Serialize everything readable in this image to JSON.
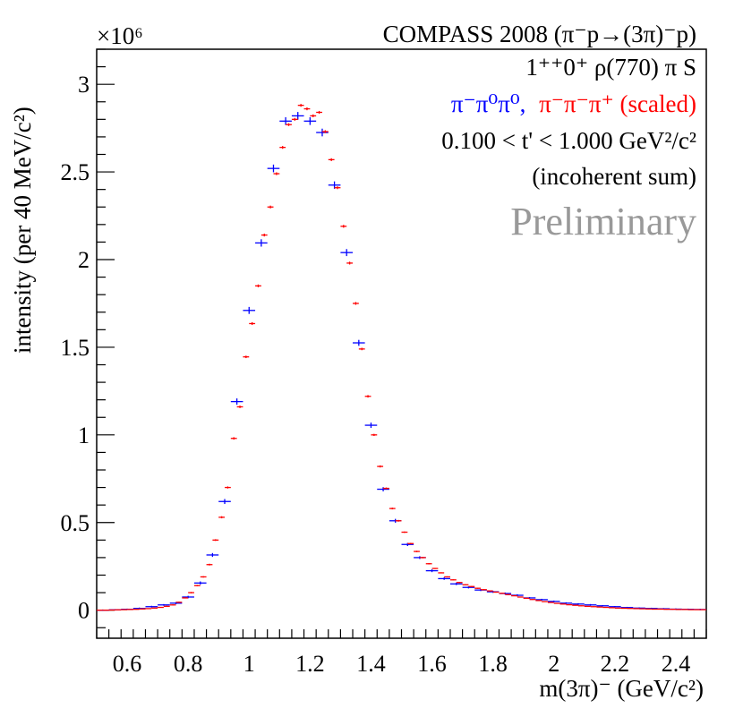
{
  "chart_data": {
    "type": "scatter",
    "title": "COMPASS 2008 (π⁻p→(3π)⁻p)",
    "legend_lines": [
      {
        "text": "1⁺⁺0⁺ ρ(770) π S",
        "color": "#000000"
      },
      {
        "text": "0.100 < t' < 1.000 GeV²/c²",
        "color": "#000000"
      },
      {
        "text": "(incoherent sum)",
        "color": "#000000"
      }
    ],
    "legend_series": [
      {
        "text": "π⁻π⁰π⁰,",
        "color": "#0000ff"
      },
      {
        "text": "π⁻π⁻π⁺ (scaled)",
        "color": "#ff0000"
      }
    ],
    "watermark": "Preliminary",
    "ylabel": "intensity (per 40 MeV/c²)",
    "xlabel": "m(3π)⁻ (GeV/c²)",
    "y_multiplier": "×10⁶",
    "xlim": [
      0.5,
      2.5
    ],
    "ylim": [
      -0.16,
      3.2
    ],
    "x_ticks": [
      0.6,
      0.8,
      1.0,
      1.2,
      1.4,
      1.6,
      1.8,
      2.0,
      2.2,
      2.4
    ],
    "x_tick_labels": [
      "0.6",
      "0.8",
      "1",
      "1.2",
      "1.4",
      "1.6",
      "1.8",
      "2",
      "2.2",
      "2.4"
    ],
    "y_ticks": [
      0,
      0.5,
      1,
      1.5,
      2,
      2.5,
      3
    ],
    "y_tick_labels": [
      "0",
      "0.5",
      "1",
      "1.5",
      "2",
      "2.5",
      "3"
    ],
    "series": [
      {
        "name": "π⁻π⁰π⁰",
        "color": "#0000ff",
        "bin_width": 0.04,
        "x": [
          0.52,
          0.56,
          0.6,
          0.64,
          0.68,
          0.72,
          0.76,
          0.8,
          0.84,
          0.88,
          0.92,
          0.96,
          1.0,
          1.04,
          1.08,
          1.12,
          1.16,
          1.2,
          1.24,
          1.28,
          1.32,
          1.36,
          1.4,
          1.44,
          1.48,
          1.52,
          1.56,
          1.6,
          1.64,
          1.68,
          1.72,
          1.76,
          1.8,
          1.84,
          1.88,
          1.92,
          1.96,
          2.0,
          2.04,
          2.08,
          2.12,
          2.16,
          2.2,
          2.24,
          2.28,
          2.32,
          2.36,
          2.4,
          2.44,
          2.48
        ],
        "y": [
          0.0,
          0.002,
          0.005,
          0.01,
          0.02,
          0.03,
          0.04,
          0.075,
          0.155,
          0.315,
          0.62,
          1.19,
          1.71,
          2.095,
          2.52,
          2.79,
          2.82,
          2.79,
          2.725,
          2.425,
          2.04,
          1.525,
          1.055,
          0.69,
          0.51,
          0.375,
          0.3,
          0.225,
          0.18,
          0.15,
          0.13,
          0.115,
          0.105,
          0.095,
          0.085,
          0.07,
          0.06,
          0.05,
          0.04,
          0.035,
          0.03,
          0.025,
          0.02,
          0.015,
          0.012,
          0.01,
          0.008,
          0.006,
          0.005,
          0.004
        ],
        "err": [
          0.004,
          0.004,
          0.004,
          0.005,
          0.005,
          0.005,
          0.006,
          0.007,
          0.009,
          0.011,
          0.014,
          0.018,
          0.02,
          0.021,
          0.022,
          0.022,
          0.022,
          0.022,
          0.022,
          0.021,
          0.02,
          0.017,
          0.015,
          0.012,
          0.011,
          0.009,
          0.008,
          0.008,
          0.007,
          0.007,
          0.006,
          0.006,
          0.006,
          0.006,
          0.006,
          0.005,
          0.005,
          0.005,
          0.005,
          0.005,
          0.005,
          0.004,
          0.004,
          0.004,
          0.004,
          0.004,
          0.004,
          0.004,
          0.004,
          0.004
        ]
      },
      {
        "name": "π⁻π⁻π⁺ (scaled)",
        "color": "#ff0000",
        "bin_width": 0.02,
        "x": [
          0.51,
          0.53,
          0.55,
          0.57,
          0.59,
          0.61,
          0.63,
          0.65,
          0.67,
          0.69,
          0.71,
          0.73,
          0.75,
          0.77,
          0.79,
          0.81,
          0.83,
          0.85,
          0.87,
          0.89,
          0.91,
          0.93,
          0.95,
          0.97,
          0.99,
          1.01,
          1.03,
          1.05,
          1.07,
          1.09,
          1.11,
          1.13,
          1.15,
          1.17,
          1.19,
          1.21,
          1.23,
          1.25,
          1.27,
          1.29,
          1.31,
          1.33,
          1.35,
          1.37,
          1.39,
          1.41,
          1.43,
          1.45,
          1.47,
          1.49,
          1.51,
          1.53,
          1.55,
          1.57,
          1.59,
          1.61,
          1.63,
          1.65,
          1.67,
          1.69,
          1.71,
          1.73,
          1.75,
          1.77,
          1.79,
          1.81,
          1.83,
          1.85,
          1.87,
          1.89,
          1.91,
          1.93,
          1.95,
          1.97,
          1.99,
          2.01,
          2.03,
          2.05,
          2.07,
          2.09,
          2.11,
          2.13,
          2.15,
          2.17,
          2.19,
          2.21,
          2.23,
          2.25,
          2.27,
          2.29,
          2.31,
          2.33,
          2.35,
          2.37,
          2.39,
          2.41,
          2.43,
          2.45,
          2.47,
          2.49
        ],
        "y": [
          0.0,
          0.0,
          0.001,
          0.002,
          0.003,
          0.004,
          0.005,
          0.007,
          0.009,
          0.012,
          0.016,
          0.022,
          0.03,
          0.045,
          0.07,
          0.1,
          0.14,
          0.19,
          0.26,
          0.4,
          0.53,
          0.7,
          0.98,
          1.16,
          1.445,
          1.635,
          1.85,
          2.14,
          2.3,
          2.49,
          2.64,
          2.77,
          2.8,
          2.88,
          2.86,
          2.82,
          2.84,
          2.73,
          2.57,
          2.41,
          2.19,
          1.98,
          1.75,
          1.49,
          1.22,
          1.0,
          0.82,
          0.695,
          0.58,
          0.51,
          0.445,
          0.38,
          0.335,
          0.3,
          0.265,
          0.238,
          0.213,
          0.19,
          0.173,
          0.158,
          0.145,
          0.135,
          0.125,
          0.117,
          0.11,
          0.103,
          0.096,
          0.089,
          0.082,
          0.075,
          0.068,
          0.061,
          0.055,
          0.049,
          0.044,
          0.039,
          0.035,
          0.031,
          0.028,
          0.025,
          0.022,
          0.02,
          0.018,
          0.016,
          0.014,
          0.012,
          0.011,
          0.01,
          0.009,
          0.008,
          0.007,
          0.006,
          0.006,
          0.005,
          0.005,
          0.004,
          0.004,
          0.003,
          0.003,
          0.003
        ],
        "err": [
          0.002,
          0.002,
          0.002,
          0.002,
          0.002,
          0.002,
          0.002,
          0.002,
          0.002,
          0.002,
          0.002,
          0.003,
          0.003,
          0.003,
          0.003,
          0.004,
          0.004,
          0.004,
          0.005,
          0.005,
          0.006,
          0.006,
          0.007,
          0.007,
          0.007,
          0.008,
          0.008,
          0.008,
          0.008,
          0.008,
          0.008,
          0.008,
          0.008,
          0.008,
          0.008,
          0.008,
          0.008,
          0.008,
          0.008,
          0.008,
          0.008,
          0.008,
          0.008,
          0.007,
          0.007,
          0.006,
          0.006,
          0.005,
          0.005,
          0.005,
          0.004,
          0.004,
          0.004,
          0.004,
          0.004,
          0.003,
          0.003,
          0.003,
          0.003,
          0.003,
          0.003,
          0.003,
          0.003,
          0.003,
          0.003,
          0.003,
          0.003,
          0.003,
          0.002,
          0.002,
          0.002,
          0.002,
          0.002,
          0.002,
          0.002,
          0.002,
          0.002,
          0.002,
          0.002,
          0.002,
          0.002,
          0.002,
          0.002,
          0.002,
          0.002,
          0.002,
          0.002,
          0.002,
          0.002,
          0.002,
          0.002,
          0.002,
          0.002,
          0.002,
          0.002,
          0.002,
          0.002,
          0.002,
          0.002,
          0.002
        ]
      }
    ]
  }
}
